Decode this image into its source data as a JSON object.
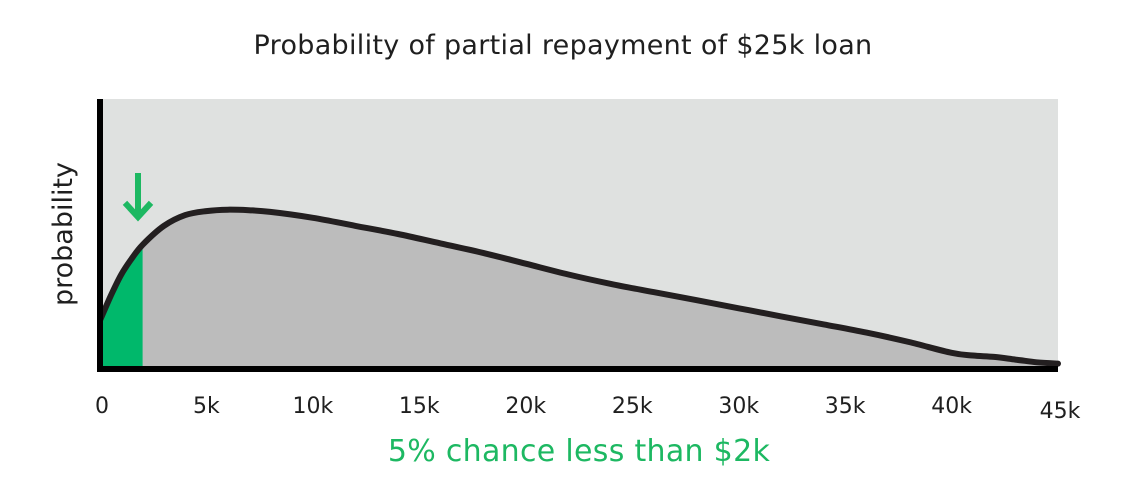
{
  "chart_data": {
    "type": "area",
    "title": "Probability of partial repayment of $25k loan",
    "ylabel": "probability",
    "caption": "5% chance less than $2k",
    "xlim": [
      0,
      45000
    ],
    "ylim": [
      0,
      1
    ],
    "x_ticks": [
      {
        "value": 0,
        "label": "0"
      },
      {
        "value": 5000,
        "label": "5k"
      },
      {
        "value": 10000,
        "label": "10k"
      },
      {
        "value": 15000,
        "label": "15k"
      },
      {
        "value": 20000,
        "label": "20k"
      },
      {
        "value": 25000,
        "label": "25k"
      },
      {
        "value": 30000,
        "label": "30k"
      },
      {
        "value": 35000,
        "label": "35k"
      },
      {
        "value": 40000,
        "label": "40k"
      },
      {
        "value": 45000,
        "label": "45k"
      }
    ],
    "curve": {
      "x": [
        0,
        500,
        1000,
        1500,
        2000,
        3000,
        4000,
        5000,
        6000,
        7000,
        8000,
        10000,
        12000,
        14000,
        16000,
        18000,
        20000,
        22000,
        24000,
        26000,
        28000,
        30000,
        32000,
        34000,
        36000,
        38000,
        40000,
        41000,
        42000,
        43000,
        44000,
        45000
      ],
      "y": [
        0.18,
        0.27,
        0.35,
        0.41,
        0.46,
        0.53,
        0.57,
        0.585,
        0.59,
        0.588,
        0.582,
        0.56,
        0.53,
        0.5,
        0.465,
        0.43,
        0.39,
        0.35,
        0.315,
        0.285,
        0.255,
        0.225,
        0.195,
        0.165,
        0.135,
        0.1,
        0.06,
        0.05,
        0.045,
        0.035,
        0.025,
        0.02
      ]
    },
    "highlight": {
      "x_max": 2000,
      "color": "#00b86b"
    },
    "colors": {
      "plot_background": "#dfe1e0",
      "area_fill": "#bcbcbc",
      "curve": "#231f20",
      "axis": "#000000",
      "accent": "#1db862"
    },
    "grid": false
  }
}
